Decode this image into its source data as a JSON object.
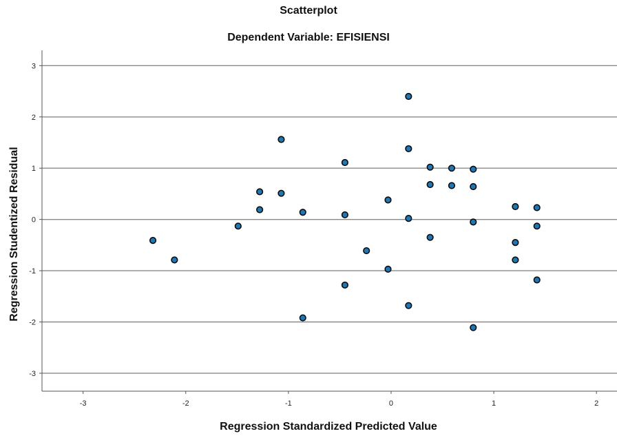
{
  "chart_data": {
    "type": "scatter",
    "title": "Scatterplot",
    "subtitle": "Dependent Variable: EFISIENSI",
    "xlabel": "Regression Standardized Predicted Value",
    "ylabel": "Regression Studentized Residual",
    "xlim": [
      -3.4,
      2.2
    ],
    "ylim": [
      -3.35,
      3.3
    ],
    "xticks": [
      -3,
      -2,
      -1,
      0,
      1,
      2
    ],
    "yticks": [
      3,
      2,
      1,
      0,
      -1,
      -2,
      -3
    ],
    "grid": "horizontal",
    "marker_color": "#1f77b4",
    "series": [
      {
        "points": [
          {
            "x": -2.32,
            "y": -0.41
          },
          {
            "x": -2.11,
            "y": -0.79
          },
          {
            "x": -1.49,
            "y": -0.13
          },
          {
            "x": -1.28,
            "y": 0.54
          },
          {
            "x": -1.28,
            "y": 0.19
          },
          {
            "x": -1.07,
            "y": 1.56
          },
          {
            "x": -1.07,
            "y": 0.51
          },
          {
            "x": -0.86,
            "y": 0.14
          },
          {
            "x": -0.86,
            "y": -1.92
          },
          {
            "x": -0.45,
            "y": 1.11
          },
          {
            "x": -0.45,
            "y": 0.09
          },
          {
            "x": -0.45,
            "y": -1.28
          },
          {
            "x": -0.24,
            "y": -0.61
          },
          {
            "x": -0.03,
            "y": 0.38
          },
          {
            "x": -0.03,
            "y": -0.97
          },
          {
            "x": 0.17,
            "y": 2.4
          },
          {
            "x": 0.17,
            "y": 1.38
          },
          {
            "x": 0.17,
            "y": 0.02
          },
          {
            "x": 0.17,
            "y": -1.68
          },
          {
            "x": 0.38,
            "y": 1.02
          },
          {
            "x": 0.38,
            "y": 0.68
          },
          {
            "x": 0.38,
            "y": -0.35
          },
          {
            "x": 0.59,
            "y": 1.0
          },
          {
            "x": 0.59,
            "y": 0.66
          },
          {
            "x": 0.8,
            "y": 0.98
          },
          {
            "x": 0.8,
            "y": 0.64
          },
          {
            "x": 0.8,
            "y": -0.05
          },
          {
            "x": 0.8,
            "y": -2.11
          },
          {
            "x": 1.21,
            "y": 0.25
          },
          {
            "x": 1.21,
            "y": -0.45
          },
          {
            "x": 1.21,
            "y": -0.79
          },
          {
            "x": 1.42,
            "y": 0.23
          },
          {
            "x": 1.42,
            "y": -0.13
          },
          {
            "x": 1.42,
            "y": -1.18
          }
        ]
      }
    ]
  }
}
